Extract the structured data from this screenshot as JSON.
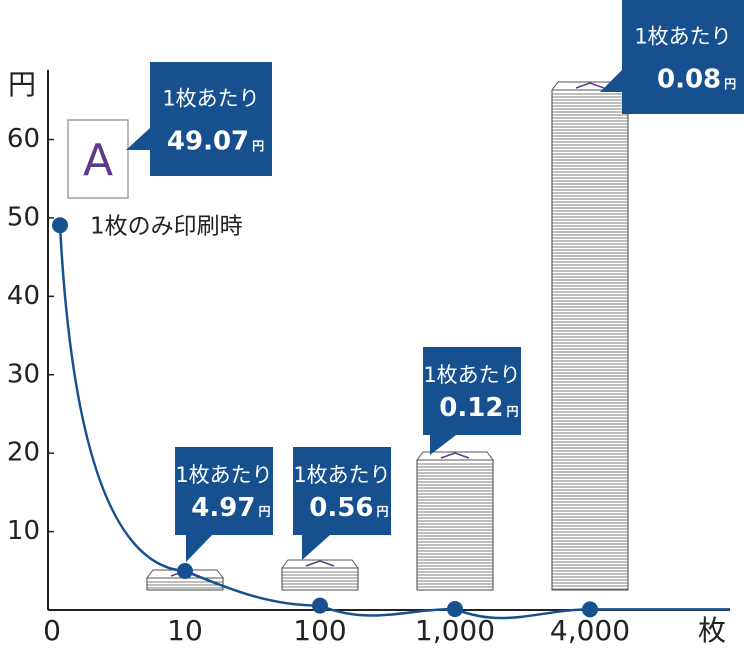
{
  "chart_data": {
    "type": "line",
    "y_label": "円",
    "x_label": "枚",
    "categories": [
      "0",
      "10",
      "100",
      "1,000",
      "4,000"
    ],
    "values": [
      49.07,
      4.97,
      0.56,
      0.12,
      0.08
    ],
    "color": "#17508f",
    "callout_label": "1枚あたり",
    "callout_color": "#17508f",
    "annotation": "1枚のみ印刷時",
    "paper_letter": "A",
    "ylim": [
      0,
      70
    ],
    "yticks": [
      10,
      20,
      30,
      40,
      50,
      60
    ]
  }
}
